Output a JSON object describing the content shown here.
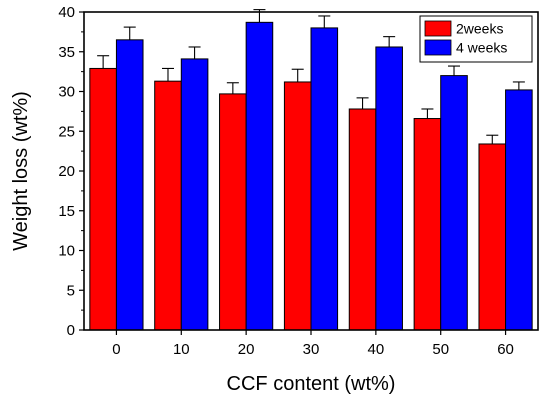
{
  "chart_data": {
    "type": "bar",
    "title": "",
    "xlabel": "CCF content (wt%)",
    "ylabel": "Weight loss (wt%)",
    "categories": [
      "0",
      "10",
      "20",
      "30",
      "40",
      "50",
      "60"
    ],
    "ylim": [
      0,
      40
    ],
    "yticks": [
      "0",
      "5",
      "10",
      "15",
      "20",
      "25",
      "30",
      "35",
      "40"
    ],
    "legend_position": "top-right",
    "grid": false,
    "series": [
      {
        "name": "2weeks",
        "color": "#ff0000",
        "values": [
          32.9,
          31.3,
          29.7,
          31.2,
          27.8,
          26.6,
          23.4
        ],
        "errors": [
          1.6,
          1.6,
          1.4,
          1.6,
          1.4,
          1.2,
          1.1
        ]
      },
      {
        "name": "4 weeks",
        "color": "#0000ff",
        "values": [
          36.5,
          34.1,
          38.7,
          38.0,
          35.6,
          32.0,
          30.2
        ],
        "errors": [
          1.6,
          1.5,
          1.6,
          1.5,
          1.3,
          1.2,
          1.0
        ]
      }
    ]
  }
}
